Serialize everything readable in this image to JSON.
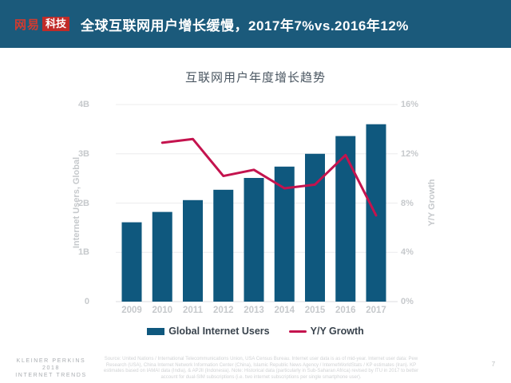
{
  "header": {
    "logo": {
      "brand": "网易",
      "badge": "科技"
    },
    "title": "全球互联网用户增长缓慢，2017年7%vs.2016年12%"
  },
  "chart_data": {
    "type": "bar",
    "title": "互联网用户年度增长趋势",
    "categories": [
      "2009",
      "2010",
      "2011",
      "2012",
      "2013",
      "2014",
      "2015",
      "2016",
      "2017"
    ],
    "series": [
      {
        "name": "Global Internet Users",
        "type": "bar",
        "axis": "left",
        "unit": "B",
        "values": [
          1.61,
          1.82,
          2.06,
          2.27,
          2.51,
          2.74,
          3.0,
          3.36,
          3.6
        ]
      },
      {
        "name": "Y/Y Growth",
        "type": "line",
        "axis": "right",
        "unit": "%",
        "x": [
          "2010",
          "2011",
          "2012",
          "2013",
          "2014",
          "2015",
          "2016",
          "2017"
        ],
        "values": [
          12.9,
          13.2,
          10.2,
          10.7,
          9.2,
          9.5,
          11.9,
          7.0
        ]
      }
    ],
    "left_axis": {
      "label": "Internet Users, Global",
      "min": 0,
      "max": 4,
      "tick_values": [
        0,
        1,
        2,
        3,
        4
      ],
      "tick_labels": [
        "0",
        "1B",
        "2B",
        "3B",
        "4B"
      ]
    },
    "right_axis": {
      "label": "Y/Y Growth",
      "min": 0,
      "max": 16,
      "tick_values": [
        0,
        4,
        8,
        12,
        16
      ],
      "tick_labels": [
        "0%",
        "4%",
        "8%",
        "12%",
        "16%"
      ]
    },
    "legend": [
      {
        "label": "Global Internet Users",
        "type": "bar"
      },
      {
        "label": "Y/Y Growth",
        "type": "line"
      }
    ],
    "legend_position": "bottom",
    "grid": true,
    "colors": {
      "bar": "#0f587e",
      "line": "#c4134e",
      "grid": "#ececed",
      "baseline": "#dcdedf",
      "tick_text": "#c6c9cc",
      "header_bg": "#1b5a7b",
      "logo_red": "#c02b28",
      "title_text": "#4a5661",
      "legend_text": "#39434d"
    }
  },
  "footer": {
    "brand_lines": [
      "KLEINER PERKINS",
      "2018",
      "INTERNET TRENDS"
    ],
    "source": "Source: United Nations / International Telecommunications Union, USA Census Bureau. Internet user data is as of mid-year. Internet user data: Pew Research (USA), China Internet Network Information Center (China), Islamic Republic News Agency / InternetWorldStats / KP estimates (Iran). KP estimates based on IAMAI data (India), & APJII (Indonesia). Note: Historical data (particularly in Sub-Saharan Africa) revised by ITU in 2017 to better account for dual-SIM subscriptions (i.e. two internet subscriptions per single smartphone user).",
    "page": "7"
  }
}
